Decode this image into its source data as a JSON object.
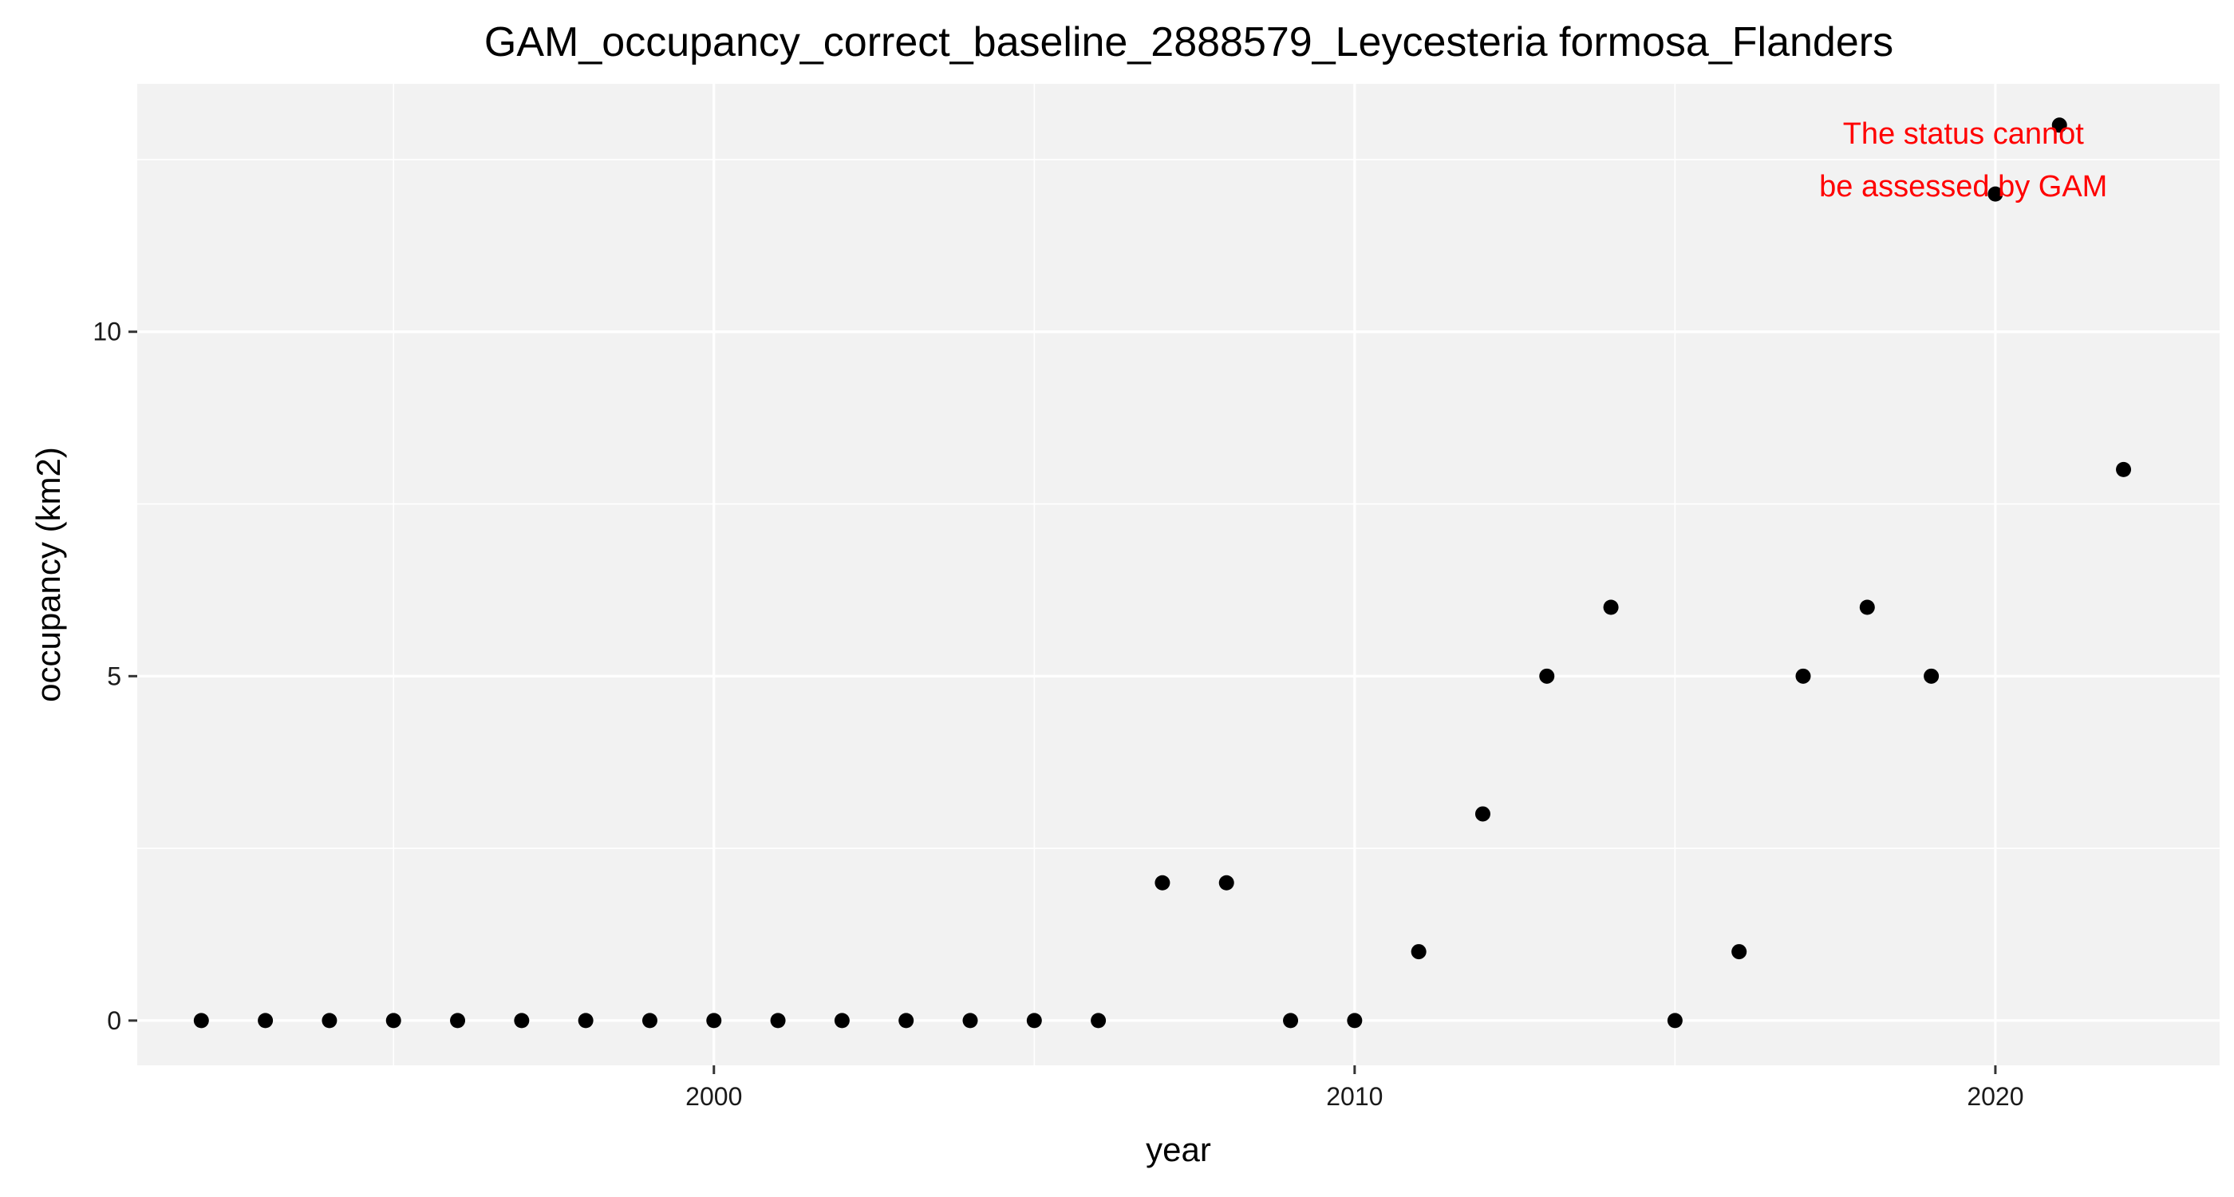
{
  "chart_data": {
    "type": "scatter",
    "title": "GAM_occupancy_correct_baseline_2888579_Leycesteria formosa_Flanders",
    "xlabel": "year",
    "ylabel": "occupancy (km2)",
    "xlim": [
      1991,
      2023.5
    ],
    "ylim": [
      -0.65,
      13.6
    ],
    "x_ticks": [
      2000,
      2010,
      2020
    ],
    "x_minor_ticks": [
      1995,
      2005,
      2015
    ],
    "y_ticks": [
      0,
      5,
      10
    ],
    "y_minor_ticks": [
      2.5,
      7.5,
      12.5
    ],
    "x_tick_labels": [
      "2000",
      "2010",
      "2020"
    ],
    "y_tick_labels": [
      "0",
      "5",
      "10"
    ],
    "grid": true,
    "series": [
      {
        "name": "occupancy",
        "x": [
          1992,
          1993,
          1994,
          1995,
          1996,
          1997,
          1998,
          1999,
          2000,
          2001,
          2002,
          2003,
          2004,
          2005,
          2006,
          2007,
          2008,
          2009,
          2010,
          2011,
          2012,
          2013,
          2014,
          2015,
          2016,
          2017,
          2018,
          2019,
          2020,
          2021,
          2022
        ],
        "y": [
          0,
          0,
          0,
          0,
          0,
          0,
          0,
          0,
          0,
          0,
          0,
          0,
          0,
          0,
          0,
          2,
          2,
          0,
          0,
          1,
          3,
          5,
          6,
          0,
          1,
          5,
          6,
          5,
          12,
          13,
          8
        ],
        "color": "#000000"
      }
    ],
    "annotation": {
      "lines": [
        "The status cannot",
        "be assessed by GAM"
      ],
      "x": 2019.5,
      "y": 12.5,
      "color": "#ff0000"
    },
    "panel_color": "#f2f2f2",
    "grid_color": "#ffffff"
  }
}
